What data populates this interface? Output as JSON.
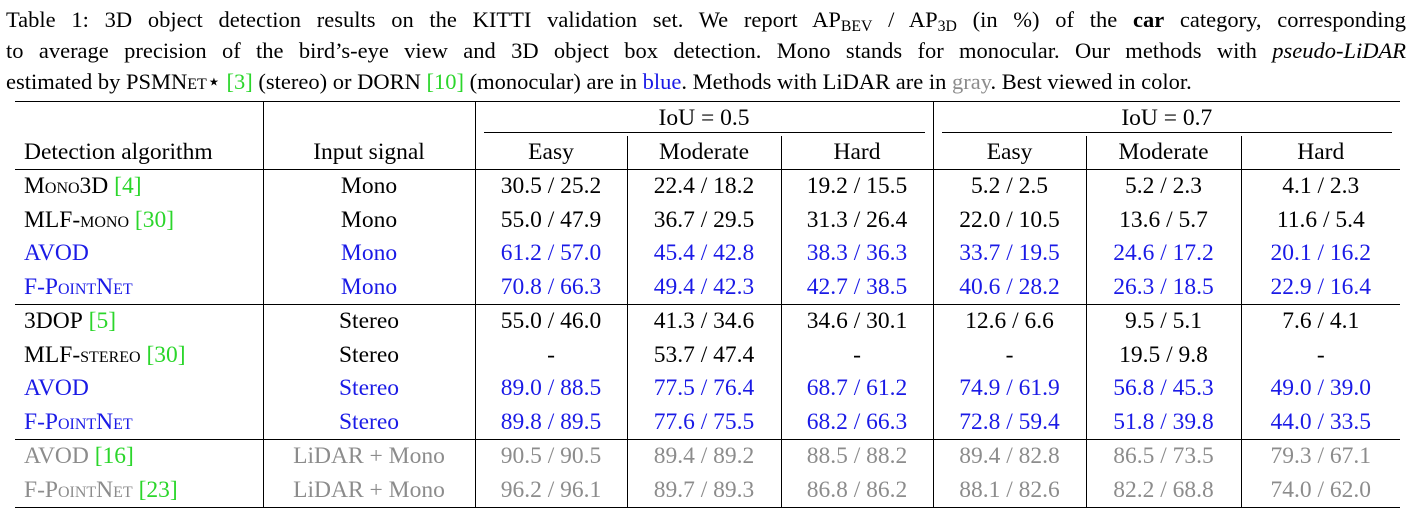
{
  "caption": {
    "l1_a": "Table 1:  3D object detection results on the KITTI validation set.  We report AP",
    "l1_sub1": "BEV",
    "l1_b": " / AP",
    "l1_sub2": "3D",
    "l1_c": " (in %) of the ",
    "l1_bold": "car",
    "l1_d": " category, corresponding",
    "l2": "to average precision of the bird’s-eye view and 3D object box detection. Mono stands for monocular. Our methods with ",
    "l2_ital": "pseudo-LiDAR",
    "l3_a": "estimated by ",
    "l3_psm": "PSMNet⋆",
    "l3_b": " ",
    "l3_ref1": "[3]",
    "l3_c": " (stereo) or DORN ",
    "l3_ref2": "[10]",
    "l3_d": " (monocular) are in ",
    "l3_blue": "blue",
    "l3_e": ". Methods with LiDAR are in ",
    "l3_gray": "gray",
    "l3_f": ". Best viewed in color."
  },
  "table": {
    "iou_05": "IoU = 0.5",
    "iou_07": "IoU = 0.7",
    "columns": [
      "Detection algorithm",
      "Input signal",
      "Easy",
      "Moderate",
      "Hard",
      "Easy",
      "Moderate",
      "Hard"
    ],
    "rows": [
      {
        "name": "Mono3D",
        "ref": "[4]",
        "input": "Mono",
        "v": [
          "30.5 / 25.2",
          "22.4 / 18.2",
          "19.2 / 15.5",
          "5.2 / 2.5",
          "5.2 / 2.3",
          "4.1 / 2.3"
        ]
      },
      {
        "name": "MLF-mono",
        "ref": "[30]",
        "input": "Mono",
        "v": [
          "55.0 / 47.9",
          "36.7 / 29.5",
          "31.3 / 26.4",
          "22.0 / 10.5",
          "13.6 / 5.7",
          "11.6 / 5.4"
        ]
      },
      {
        "name": "AVOD",
        "ref": "",
        "input": "Mono",
        "v": [
          "61.2 / 57.0",
          "45.4 / 42.8",
          "38.3 / 36.3",
          "33.7 / 19.5",
          "24.6 / 17.2",
          "20.1 / 16.2"
        ]
      },
      {
        "name": "F-PointNet",
        "ref": "",
        "input": "Mono",
        "v": [
          "70.8 / 66.3",
          "49.4 / 42.3",
          "42.7 / 38.5",
          "40.6 / 28.2",
          "26.3 / 18.5",
          "22.9 / 16.4"
        ]
      },
      {
        "name": "3DOP",
        "ref": "[5]",
        "input": "Stereo",
        "v": [
          "55.0 / 46.0",
          "41.3 / 34.6",
          "34.6 / 30.1",
          "12.6 / 6.6",
          "9.5 / 5.1",
          "7.6 / 4.1"
        ]
      },
      {
        "name": "MLF-stereo",
        "ref": "[30]",
        "input": "Stereo",
        "v": [
          "-",
          "53.7 / 47.4",
          "-",
          "-",
          "19.5 / 9.8",
          "-"
        ]
      },
      {
        "name": "AVOD",
        "ref": "",
        "input": "Stereo",
        "v": [
          "89.0 / 88.5",
          "77.5 / 76.4",
          "68.7 / 61.2",
          "74.9 / 61.9",
          "56.8 / 45.3",
          "49.0 / 39.0"
        ]
      },
      {
        "name": "F-PointNet",
        "ref": "",
        "input": "Stereo",
        "v": [
          "89.8 / 89.5",
          "77.6 / 75.5",
          "68.2 / 66.3",
          "72.8 / 59.4",
          "51.8 / 39.8",
          "44.0 / 33.5"
        ]
      },
      {
        "name": "AVOD",
        "ref": "[16]",
        "input": "LiDAR + Mono",
        "v": [
          "90.5 / 90.5",
          "89.4 / 89.2",
          "88.5 / 88.2",
          "89.4 / 82.8",
          "86.5 / 73.5",
          "79.3 / 67.1"
        ]
      },
      {
        "name": "F-PointNet",
        "ref": "[23]",
        "input": "LiDAR + Mono",
        "v": [
          "96.2 / 96.1",
          "89.7 / 89.3",
          "86.8 / 86.2",
          "88.1 / 82.6",
          "82.2 / 68.8",
          "74.0 / 62.0"
        ]
      }
    ]
  },
  "colors": {
    "blue": "#1a1ae6",
    "gray": "#8c8c8c",
    "cite_green": "#2bd62b"
  }
}
